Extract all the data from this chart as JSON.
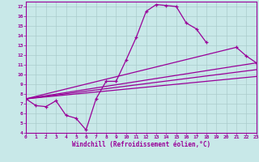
{
  "bg_color": "#c8e8e8",
  "line_color": "#990099",
  "grid_color": "#aacccc",
  "spine_color": "#7700aa",
  "xlim": [
    0,
    23
  ],
  "ylim": [
    4,
    17.5
  ],
  "xtick_labels": [
    "0",
    "1",
    "2",
    "3",
    "4",
    "5",
    "6",
    "7",
    "8",
    "9",
    "10",
    "11",
    "12",
    "13",
    "14",
    "15",
    "16",
    "17",
    "18",
    "19",
    "20",
    "21",
    "22",
    "23"
  ],
  "ytick_labels": [
    "4",
    "5",
    "6",
    "7",
    "8",
    "9",
    "10",
    "11",
    "12",
    "13",
    "14",
    "15",
    "16",
    "17"
  ],
  "ytick_vals": [
    4,
    5,
    6,
    7,
    8,
    9,
    10,
    11,
    12,
    13,
    14,
    15,
    16,
    17
  ],
  "xlabel": "Windchill (Refroidissement éolien,°C)",
  "series0_x": [
    0,
    1,
    2,
    3,
    4,
    5,
    6,
    7,
    8,
    9,
    10,
    11,
    12,
    13,
    14,
    15,
    16,
    17,
    18
  ],
  "series0_y": [
    7.5,
    6.8,
    6.7,
    7.3,
    5.8,
    5.5,
    4.3,
    7.5,
    9.3,
    9.3,
    11.5,
    13.8,
    16.5,
    17.2,
    17.1,
    17.0,
    15.3,
    14.7,
    13.3
  ],
  "series1_x": [
    0,
    21,
    22,
    23
  ],
  "series1_y": [
    7.5,
    12.8,
    11.9,
    11.2
  ],
  "series2_x": [
    0,
    23
  ],
  "series2_y": [
    7.5,
    11.2
  ],
  "series3_x": [
    0,
    23
  ],
  "series3_y": [
    7.5,
    10.5
  ],
  "series4_x": [
    0,
    23
  ],
  "series4_y": [
    7.5,
    9.8
  ]
}
